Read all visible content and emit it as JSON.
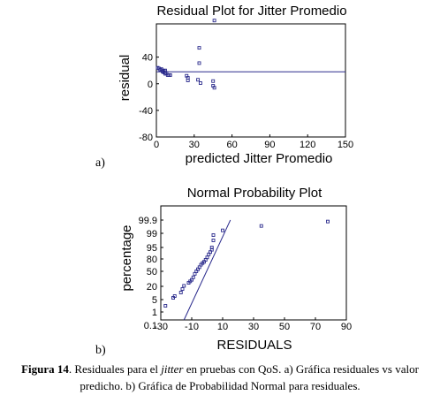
{
  "chart_data": [
    {
      "type": "scatter",
      "panel_label": "a)",
      "title": "Residual Plot for Jitter Promedio",
      "xlabel": "predicted Jitter Promedio",
      "ylabel": "residual",
      "xlim": [
        0,
        150
      ],
      "ylim": [
        -80,
        90
      ],
      "xticks": [
        0,
        30,
        60,
        90,
        120,
        150
      ],
      "yticks": [
        -80,
        -40,
        0,
        40
      ],
      "reference_line_y": 18,
      "grid": false,
      "points": [
        {
          "x": 1,
          "y": 24
        },
        {
          "x": 2,
          "y": 23
        },
        {
          "x": 3,
          "y": 21
        },
        {
          "x": 4,
          "y": 22
        },
        {
          "x": 5,
          "y": 20
        },
        {
          "x": 5,
          "y": 18
        },
        {
          "x": 6,
          "y": 19
        },
        {
          "x": 6,
          "y": 17
        },
        {
          "x": 7,
          "y": 20
        },
        {
          "x": 7,
          "y": 15
        },
        {
          "x": 8,
          "y": 16
        },
        {
          "x": 9,
          "y": 13
        },
        {
          "x": 10,
          "y": 13
        },
        {
          "x": 11,
          "y": 13
        },
        {
          "x": 24,
          "y": 12
        },
        {
          "x": 25,
          "y": 9
        },
        {
          "x": 25,
          "y": 5
        },
        {
          "x": 33,
          "y": 6
        },
        {
          "x": 34,
          "y": 31
        },
        {
          "x": 34,
          "y": 54
        },
        {
          "x": 35,
          "y": 1
        },
        {
          "x": 45,
          "y": 4
        },
        {
          "x": 45,
          "y": -3
        },
        {
          "x": 46,
          "y": -6
        },
        {
          "x": 46,
          "y": 95
        }
      ]
    },
    {
      "type": "scatter",
      "panel_label": "b)",
      "title": "Normal Probability Plot",
      "xlabel": "RESIDUALS",
      "ylabel": "percentage",
      "xlim": [
        -30,
        90
      ],
      "xticks": [
        -30,
        -10,
        10,
        30,
        50,
        70,
        90
      ],
      "yticks": [
        0.1,
        1,
        5,
        20,
        50,
        80,
        95,
        99,
        99.9
      ],
      "ytick_labels": [
        "0.1",
        "1",
        "5",
        "20",
        "50",
        "80",
        "95",
        "99",
        "99.9"
      ],
      "reference_line": [
        [
          -15,
          0.1
        ],
        [
          15,
          99.9
        ]
      ],
      "grid": false,
      "points": [
        {
          "x": -27,
          "y": 3
        },
        {
          "x": -22,
          "y": 7
        },
        {
          "x": -21,
          "y": 9
        },
        {
          "x": -17,
          "y": 13
        },
        {
          "x": -16,
          "y": 17
        },
        {
          "x": -15,
          "y": 21
        },
        {
          "x": -12,
          "y": 27
        },
        {
          "x": -11,
          "y": 30
        },
        {
          "x": -10,
          "y": 33
        },
        {
          "x": -9,
          "y": 38
        },
        {
          "x": -8,
          "y": 45
        },
        {
          "x": -7,
          "y": 50
        },
        {
          "x": -6,
          "y": 55
        },
        {
          "x": -5,
          "y": 60
        },
        {
          "x": -4,
          "y": 66
        },
        {
          "x": -3,
          "y": 70
        },
        {
          "x": -2,
          "y": 73
        },
        {
          "x": -1,
          "y": 78
        },
        {
          "x": 0,
          "y": 82
        },
        {
          "x": 1,
          "y": 86
        },
        {
          "x": 2,
          "y": 89
        },
        {
          "x": 3,
          "y": 92
        },
        {
          "x": 3,
          "y": 95
        },
        {
          "x": 4,
          "y": 97
        },
        {
          "x": 4,
          "y": 98.5
        },
        {
          "x": 10,
          "y": 99.2
        },
        {
          "x": 35,
          "y": 99.5
        },
        {
          "x": 78,
          "y": 99.8
        }
      ]
    }
  ],
  "caption": {
    "label": "Figura 14",
    "text_before_italic": ". Residuales para el ",
    "italic": "jitter",
    "text_after_italic": " en pruebas con QoS. a) Gráfica residuales vs valor predicho. b) Gráfica de Probabilidad Normal para residuales."
  },
  "colors": {
    "marker": "#2a2a8c",
    "line": "#2a2a8c",
    "axis": "#000000"
  }
}
